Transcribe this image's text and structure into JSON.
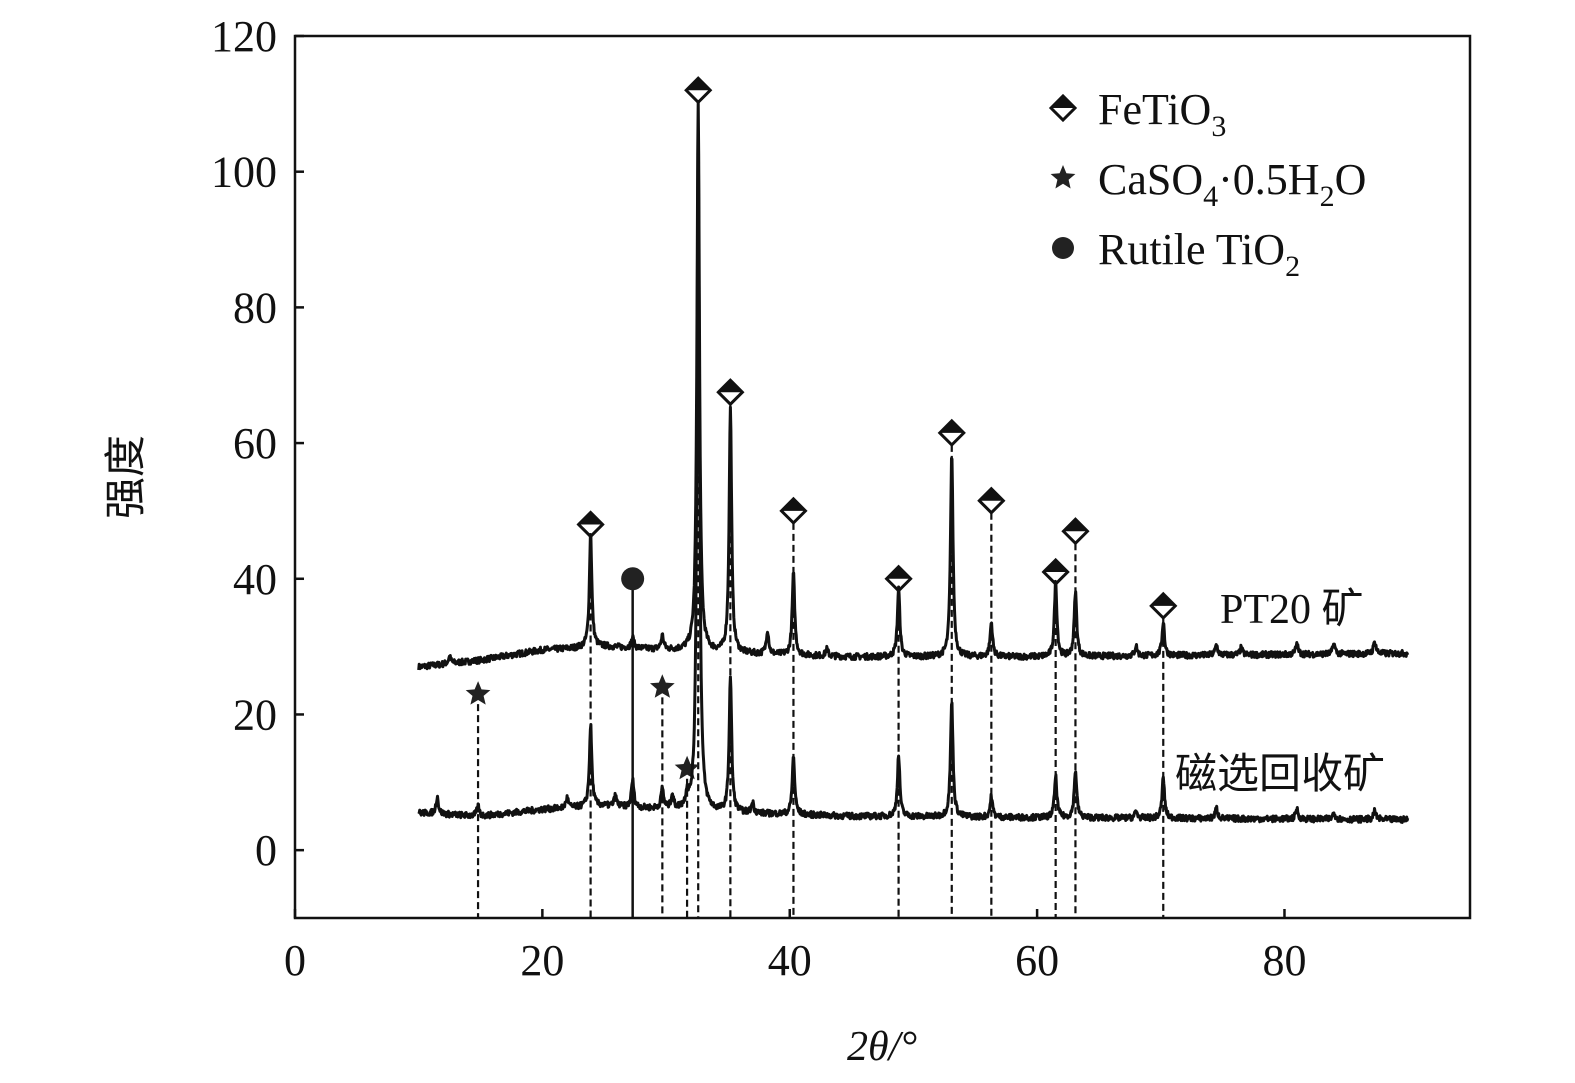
{
  "chart_data": {
    "type": "line",
    "xlabel": "2θ/°",
    "ylabel": "强度",
    "xlim": [
      0,
      95
    ],
    "ylim": [
      -10,
      120
    ],
    "xticks": [
      0,
      20,
      40,
      60,
      80
    ],
    "yticks": [
      0,
      20,
      40,
      60,
      80,
      100,
      120
    ],
    "grid": false,
    "legend_placement": "top-right",
    "legend": [
      {
        "marker": "half-filled-diamond",
        "label": "FeTiO",
        "sub": "3",
        "tail": ""
      },
      {
        "marker": "star",
        "label": "CaSO",
        "sub": "4",
        "tail": "·0.5H",
        "sub2": "2",
        "tail2": "O"
      },
      {
        "marker": "circle",
        "label": "Rutile TiO",
        "sub": "2",
        "tail": ""
      }
    ],
    "series": [
      {
        "name": "PT20 矿",
        "baseline": [
          [
            10,
            27
          ],
          [
            15,
            28
          ],
          [
            20,
            29.5
          ],
          [
            25,
            30
          ],
          [
            30,
            29.5
          ],
          [
            35,
            29
          ],
          [
            45,
            28.5
          ],
          [
            60,
            28.5
          ],
          [
            90,
            29
          ]
        ],
        "peaks": [
          [
            12.5,
            1
          ],
          [
            23.9,
            17
          ],
          [
            27.3,
            1.5
          ],
          [
            29.7,
            2
          ],
          [
            32.6,
            81
          ],
          [
            35.2,
            36
          ],
          [
            38.2,
            3.5
          ],
          [
            40.3,
            12
          ],
          [
            43,
            1
          ],
          [
            48.8,
            10
          ],
          [
            53.1,
            30
          ],
          [
            56.3,
            5
          ],
          [
            61.5,
            11
          ],
          [
            63.1,
            9.5
          ],
          [
            68,
            1.5
          ],
          [
            70.2,
            5
          ],
          [
            74.5,
            1.5
          ],
          [
            76.5,
            1
          ],
          [
            81,
            1.5
          ],
          [
            84,
            1.5
          ],
          [
            87.3,
            1.8
          ]
        ]
      },
      {
        "name": "磁选回收矿",
        "baseline": [
          [
            10,
            5.5
          ],
          [
            15,
            5
          ],
          [
            20,
            6
          ],
          [
            25,
            6.5
          ],
          [
            30,
            6
          ],
          [
            35,
            5.5
          ],
          [
            45,
            5
          ],
          [
            60,
            4.8
          ],
          [
            90,
            4.5
          ]
        ],
        "peaks": [
          [
            11.5,
            2.5
          ],
          [
            14.8,
            1.5
          ],
          [
            22,
            1.5
          ],
          [
            23.9,
            12
          ],
          [
            25.9,
            1.5
          ],
          [
            27.3,
            4
          ],
          [
            29.7,
            3
          ],
          [
            30.5,
            2
          ],
          [
            31.7,
            2
          ],
          [
            32.6,
            100
          ],
          [
            35.2,
            20
          ],
          [
            37,
            1.5
          ],
          [
            40.3,
            8.5
          ],
          [
            48.8,
            9
          ],
          [
            53.1,
            17
          ],
          [
            56.3,
            3
          ],
          [
            61.5,
            6
          ],
          [
            63.1,
            7
          ],
          [
            68,
            1
          ],
          [
            70.2,
            6
          ],
          [
            74.5,
            1.5
          ],
          [
            81,
            1.5
          ],
          [
            84,
            1
          ],
          [
            87.3,
            1.2
          ]
        ]
      }
    ],
    "annotations": {
      "FeTiO3": [
        [
          23.9,
          48
        ],
        [
          32.6,
          112
        ],
        [
          35.2,
          67.5
        ],
        [
          40.3,
          50
        ],
        [
          48.8,
          40
        ],
        [
          53.1,
          61.5
        ],
        [
          56.3,
          51.5
        ],
        [
          61.5,
          41
        ],
        [
          63.1,
          47
        ],
        [
          70.2,
          36
        ]
      ],
      "CaSO4·0.5H2O": [
        [
          14.8,
          23
        ],
        [
          29.7,
          24
        ],
        [
          31.7,
          12
        ]
      ],
      "Rutile TiO2": [
        [
          27.3,
          40
        ]
      ]
    },
    "curve_labels": [
      "PT20 矿",
      "磁选回收矿"
    ],
    "colors": {
      "line": "#111111"
    }
  }
}
